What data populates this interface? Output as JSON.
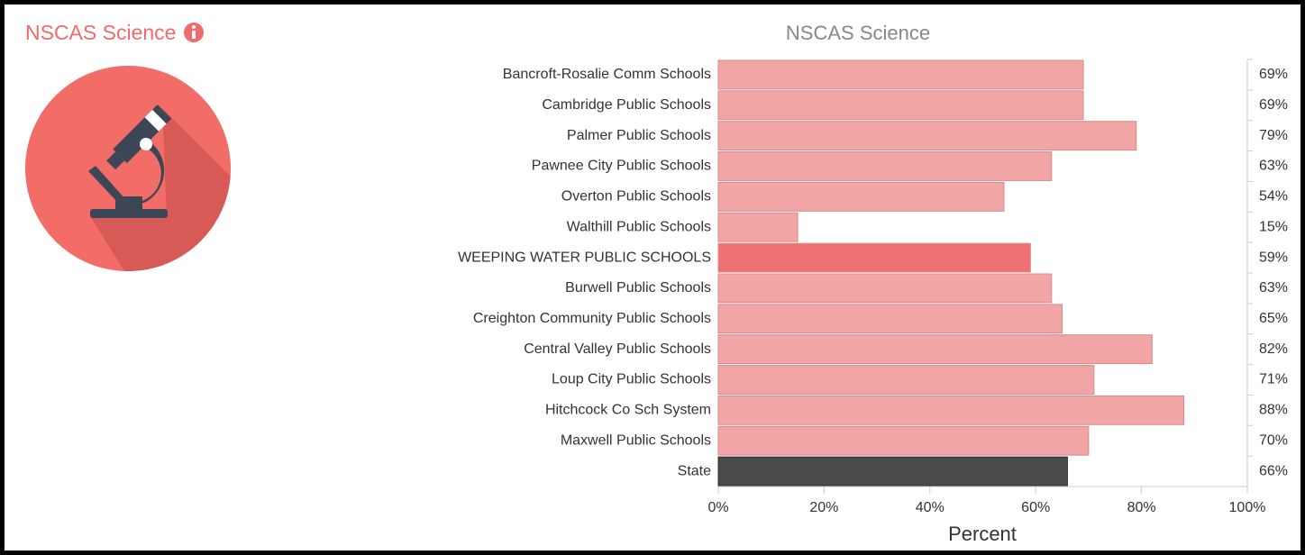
{
  "header": {
    "title": "NSCAS Science"
  },
  "chart_data": {
    "type": "hbar",
    "title": "NSCAS Science",
    "x_label": "Percent",
    "categories": [
      "Bancroft-Rosalie Comm Schools",
      "Cambridge Public Schools",
      "Palmer Public Schools",
      "Pawnee City Public Schools",
      "Overton Public Schools",
      "Walthill Public Schools",
      "WEEPING WATER PUBLIC SCHOOLS",
      "Burwell Public Schools",
      "Creighton Community Public Schools",
      "Central Valley Public Schools",
      "Loup City Public Schools",
      "Hitchcock Co Sch System",
      "Maxwell Public Schools",
      "State"
    ],
    "values": [
      69,
      69,
      79,
      63,
      54,
      15,
      59,
      63,
      65,
      82,
      71,
      88,
      70,
      66
    ],
    "value_labels": [
      "69%",
      "69%",
      "79%",
      "63%",
      "54%",
      "15%",
      "59%",
      "63%",
      "65%",
      "82%",
      "71%",
      "88%",
      "70%",
      "66%"
    ],
    "colors": [
      "#f2a5a5",
      "#f2a5a5",
      "#f2a5a5",
      "#f2a5a5",
      "#f2a5a5",
      "#f2a5a5",
      "#f07171",
      "#f2a5a5",
      "#f2a5a5",
      "#f2a5a5",
      "#f2a5a5",
      "#f2a5a5",
      "#f2a5a5",
      "#4a4a4a"
    ],
    "xlim": [
      0,
      100
    ],
    "xticks": [
      {
        "value": 0,
        "label": "0%"
      },
      {
        "value": 20,
        "label": "20%"
      },
      {
        "value": 40,
        "label": "40%"
      },
      {
        "value": 60,
        "label": "60%"
      },
      {
        "value": 80,
        "label": "80%"
      },
      {
        "value": 100,
        "label": "100%"
      }
    ]
  }
}
